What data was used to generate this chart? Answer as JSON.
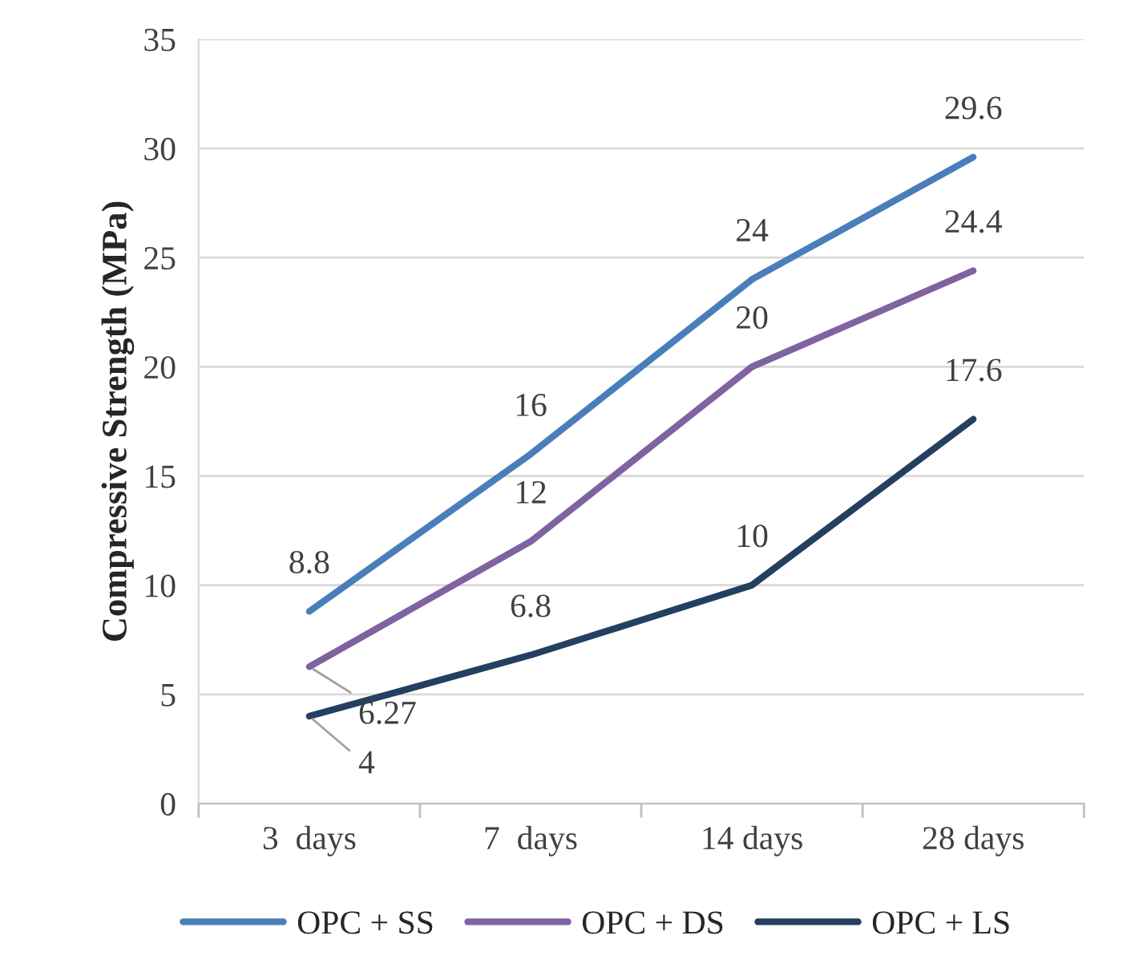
{
  "chart_data": {
    "type": "line",
    "ylabel": "Compressive Strength (MPa)",
    "categories": [
      "3  days",
      "7  days",
      "14 days",
      "28 days"
    ],
    "series": [
      {
        "name": "OPC + SS",
        "color": "#4a7ebb",
        "values": [
          8.8,
          16,
          24,
          29.6
        ]
      },
      {
        "name": "OPC + DS",
        "color": "#7f63a1",
        "values": [
          6.27,
          12,
          20,
          24.4
        ]
      },
      {
        "name": "OPC + LS",
        "color": "#243f60",
        "values": [
          4,
          6.8,
          10,
          17.6
        ]
      }
    ],
    "ylim": [
      0,
      35
    ],
    "yticks": [
      0,
      5,
      10,
      15,
      20,
      25,
      30,
      35
    ],
    "grid": "y",
    "legend": "bottom",
    "data_labels": true,
    "marker": "none",
    "line_style": "solid"
  }
}
